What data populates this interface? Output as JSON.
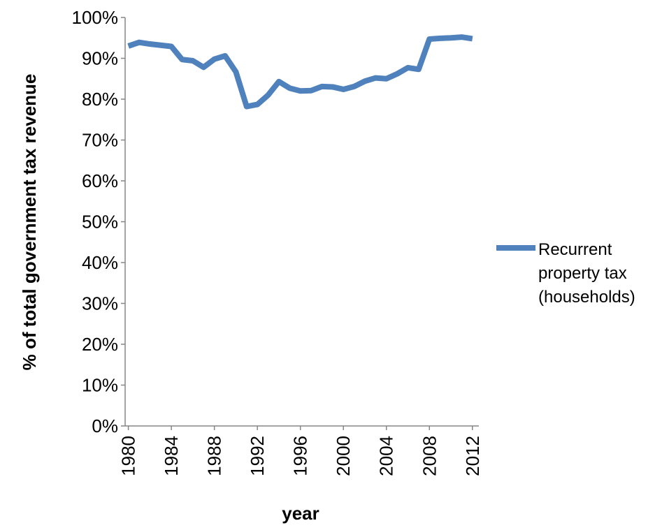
{
  "chart_data": {
    "type": "line",
    "x_label": "year",
    "y_label": "% of total government tax revenue",
    "x": [
      1980,
      1981,
      1982,
      1983,
      1984,
      1985,
      1986,
      1987,
      1988,
      1989,
      1990,
      1991,
      1992,
      1993,
      1994,
      1995,
      1996,
      1997,
      1998,
      1999,
      2000,
      2001,
      2002,
      2003,
      2004,
      2005,
      2006,
      2007,
      2008,
      2009,
      2010,
      2011,
      2012
    ],
    "series": [
      {
        "name": "Recurrent property tax (households)",
        "color": "#4f81bd",
        "values": [
          93.0,
          93.9,
          93.5,
          93.2,
          92.9,
          89.7,
          89.4,
          87.8,
          89.8,
          90.6,
          86.7,
          78.2,
          78.7,
          81.0,
          84.3,
          82.7,
          82.0,
          82.1,
          83.1,
          83.0,
          82.4,
          83.1,
          84.4,
          85.2,
          85.0,
          86.2,
          87.7,
          87.3,
          94.7,
          94.9,
          95.0,
          95.2,
          94.8
        ]
      }
    ],
    "xlim": [
      1979.7,
      2012.6
    ],
    "xticks": [
      1980,
      1984,
      1988,
      1992,
      1996,
      2000,
      2004,
      2008,
      2012
    ],
    "ylim": [
      0,
      100
    ],
    "yticks": [
      {
        "value": 0,
        "label": "0%"
      },
      {
        "value": 10,
        "label": "10%"
      },
      {
        "value": 20,
        "label": "20%"
      },
      {
        "value": 30,
        "label": "30%"
      },
      {
        "value": 40,
        "label": "40%"
      },
      {
        "value": 50,
        "label": "50%"
      },
      {
        "value": 60,
        "label": "60%"
      },
      {
        "value": 70,
        "label": "70%"
      },
      {
        "value": 80,
        "label": "80%"
      },
      {
        "value": 90,
        "label": "90%"
      },
      {
        "value": 100,
        "label": "100%"
      }
    ],
    "grid": false,
    "legend": "right"
  }
}
